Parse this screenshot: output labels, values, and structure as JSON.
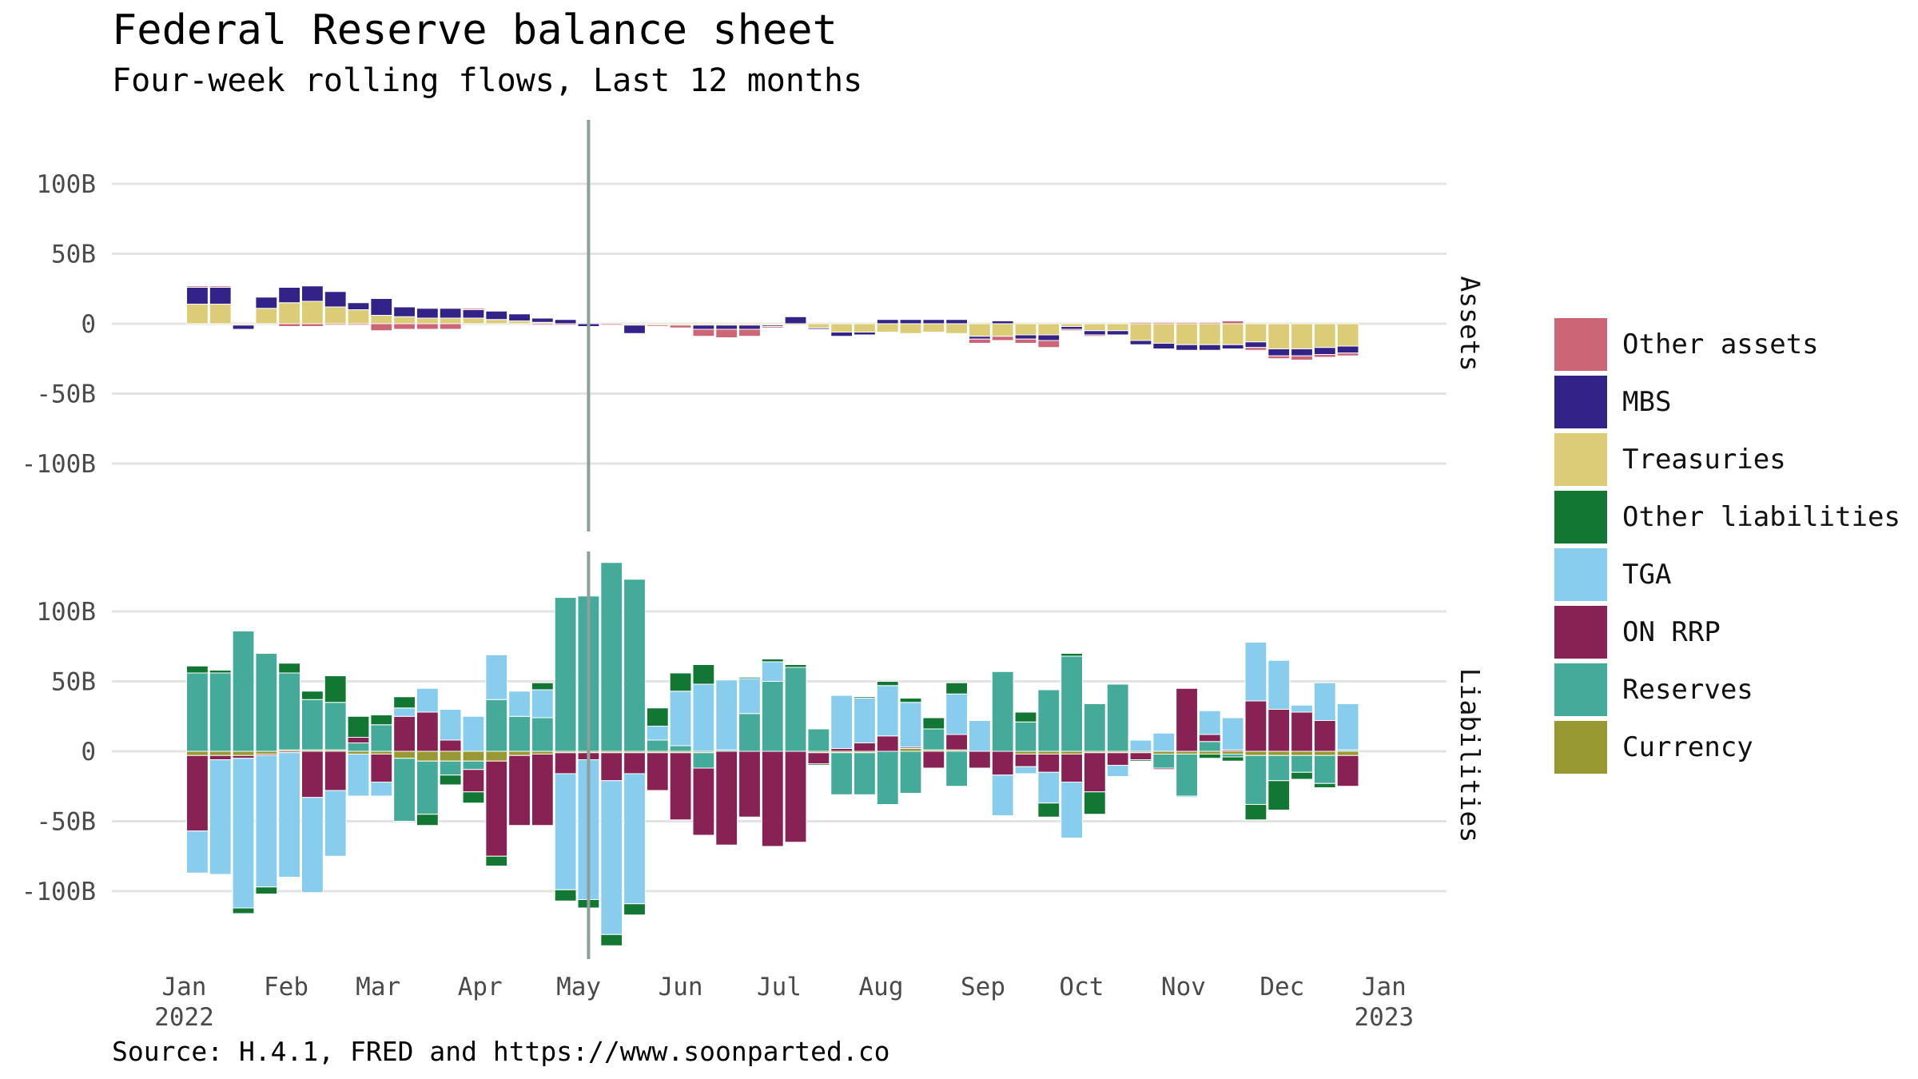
{
  "title": "Federal Reserve balance sheet",
  "subtitle": "Four-week rolling flows, Last 12 months",
  "caption": "Source: H.4.1, FRED and https://www.soonparted.co",
  "chart_data": {
    "type": "bar",
    "stacked": true,
    "facets": [
      "Assets",
      "Liabilities"
    ],
    "x_labels": [
      {
        "date": "2022-01-01",
        "label": "Jan",
        "year": "2022"
      },
      {
        "date": "2022-02-01",
        "label": "Feb"
      },
      {
        "date": "2022-03-01",
        "label": "Mar"
      },
      {
        "date": "2022-04-01",
        "label": "Apr"
      },
      {
        "date": "2022-05-01",
        "label": "May"
      },
      {
        "date": "2022-06-01",
        "label": "Jun"
      },
      {
        "date": "2022-07-01",
        "label": "Jul"
      },
      {
        "date": "2022-08-01",
        "label": "Aug"
      },
      {
        "date": "2022-09-01",
        "label": "Sep"
      },
      {
        "date": "2022-10-01",
        "label": "Oct"
      },
      {
        "date": "2022-11-01",
        "label": "Nov"
      },
      {
        "date": "2022-12-01",
        "label": "Dec"
      },
      {
        "date": "2023-01-01",
        "label": "Jan",
        "year": "2023"
      }
    ],
    "y_ticks": [
      100,
      50,
      0,
      -50,
      -100
    ],
    "y_tick_labels": [
      "100B",
      "50B",
      "0",
      "-50B",
      "-100B"
    ],
    "ylim": [
      -145,
      145
    ],
    "vline_date": "2022-05-04",
    "legend": [
      {
        "name": "Other assets",
        "color": "#cc6677"
      },
      {
        "name": "MBS",
        "color": "#332288"
      },
      {
        "name": "Treasuries",
        "color": "#ddcc77"
      },
      {
        "name": "Other liabilities",
        "color": "#117733"
      },
      {
        "name": "TGA",
        "color": "#88ccee"
      },
      {
        "name": "ON RRP",
        "color": "#882255"
      },
      {
        "name": "Reserves",
        "color": "#44aa99"
      },
      {
        "name": "Currency",
        "color": "#999933"
      }
    ],
    "dates": [
      "2022-01-05",
      "2022-01-12",
      "2022-01-19",
      "2022-01-26",
      "2022-02-02",
      "2022-02-09",
      "2022-02-16",
      "2022-02-23",
      "2022-03-02",
      "2022-03-09",
      "2022-03-16",
      "2022-03-23",
      "2022-03-30",
      "2022-04-06",
      "2022-04-13",
      "2022-04-20",
      "2022-04-27",
      "2022-05-04",
      "2022-05-11",
      "2022-05-18",
      "2022-05-25",
      "2022-06-01",
      "2022-06-08",
      "2022-06-15",
      "2022-06-22",
      "2022-06-29",
      "2022-07-06",
      "2022-07-13",
      "2022-07-20",
      "2022-07-27",
      "2022-08-03",
      "2022-08-10",
      "2022-08-17",
      "2022-08-24",
      "2022-08-31",
      "2022-09-07",
      "2022-09-14",
      "2022-09-21",
      "2022-09-28",
      "2022-10-05",
      "2022-10-12",
      "2022-10-19",
      "2022-10-26",
      "2022-11-02",
      "2022-11-09",
      "2022-11-16",
      "2022-11-23",
      "2022-11-30",
      "2022-12-07",
      "2022-12-14",
      "2022-12-21"
    ],
    "assets": {
      "Treasuries": [
        14,
        14,
        -1,
        11,
        15,
        16,
        12,
        10,
        6,
        5,
        4,
        4,
        4,
        3,
        2,
        1,
        0,
        0,
        0,
        -1,
        -1,
        -1,
        -1,
        -1,
        -1,
        -1,
        -1,
        -3,
        -6,
        -6,
        -6,
        -7,
        -6,
        -7,
        -9,
        -9,
        -8,
        -8,
        -2,
        -5,
        -5,
        -12,
        -14,
        -15,
        -15,
        -15,
        -13,
        -18,
        -18,
        -17,
        -16
      ],
      "MBS": [
        12,
        12,
        -3,
        8,
        11,
        11,
        11,
        5,
        12,
        7,
        7,
        7,
        6,
        6,
        5,
        3,
        3,
        -2,
        0,
        -6,
        0,
        0,
        -3,
        -3,
        -3,
        -1,
        5,
        -1,
        -3,
        -2,
        3,
        3,
        3,
        3,
        -2,
        2,
        -3,
        -4,
        -2,
        -3,
        -3,
        -3,
        -4,
        -4,
        -4,
        -3,
        -4,
        -5,
        -5,
        -5,
        -5
      ],
      "Other assets": [
        1,
        1,
        0,
        0,
        -2,
        -2,
        -1,
        -1,
        -5,
        -4,
        -4,
        -4,
        1,
        0,
        0,
        -1,
        -1,
        0,
        -1,
        0,
        -1,
        -2,
        -5,
        -6,
        -5,
        -1,
        0,
        0,
        0,
        0,
        0,
        0,
        0,
        0,
        -3,
        -3,
        -3,
        -5,
        -1,
        -1,
        0,
        1,
        1,
        1,
        1,
        2,
        -2,
        -2,
        -3,
        -2,
        -2
      ],
      "Treasuries_adj": [
        0,
        0,
        0,
        0,
        0,
        0,
        0,
        0,
        0,
        0,
        0,
        0,
        0,
        0,
        0,
        0,
        0,
        0,
        0,
        0,
        0,
        0,
        0,
        0,
        0,
        0,
        0,
        0,
        0,
        0,
        0,
        0,
        0,
        0,
        0,
        0,
        0,
        0,
        0,
        0,
        0,
        0,
        0,
        0,
        0,
        0,
        0,
        0,
        0,
        0,
        0
      ]
    },
    "liabilities": {
      "Currency": [
        -3,
        -3,
        -3,
        -2,
        1,
        1,
        1,
        -2,
        -2,
        -5,
        -7,
        -7,
        -7,
        -7,
        -3,
        -2,
        -1,
        -1,
        -1,
        -1,
        -1,
        -1,
        -1,
        0,
        0,
        0,
        0,
        -1,
        -1,
        -1,
        0,
        2,
        1,
        1,
        0,
        0,
        -2,
        -2,
        -2,
        -1,
        -1,
        -1,
        -2,
        -2,
        -2,
        -2,
        -3,
        -3,
        -3,
        -3,
        -3
      ],
      "Reserves": [
        56,
        56,
        86,
        70,
        55,
        36,
        34,
        6,
        19,
        -45,
        -38,
        -10,
        -6,
        37,
        25,
        24,
        110,
        111,
        135,
        123,
        8,
        4,
        -11,
        1,
        27,
        50,
        60,
        16,
        -30,
        -30,
        -38,
        -30,
        15,
        -25,
        0,
        57,
        21,
        44,
        68,
        34,
        48,
        0,
        -10,
        -30,
        7,
        -2,
        -35,
        -18,
        -12,
        -20,
        1
      ],
      "ON RRP": [
        -54,
        -3,
        -2,
        -1,
        -1,
        -33,
        -28,
        4,
        -20,
        25,
        28,
        8,
        -16,
        -68,
        -50,
        -51,
        -15,
        -5,
        -20,
        -15,
        -27,
        -48,
        -48,
        -67,
        -47,
        -68,
        -65,
        -8,
        2,
        6,
        11,
        1,
        -12,
        11,
        -12,
        -17,
        -9,
        -13,
        -20,
        -28,
        -9,
        -5,
        -1,
        45,
        5,
        1,
        36,
        30,
        28,
        22,
        -22
      ],
      "TGA": [
        -30,
        -82,
        -107,
        -94,
        -89,
        -68,
        -47,
        -30,
        -10,
        6,
        17,
        22,
        25,
        32,
        18,
        20,
        -83,
        -100,
        -110,
        -93,
        10,
        39,
        48,
        50,
        25,
        14,
        0,
        0,
        38,
        32,
        36,
        32,
        0,
        29,
        22,
        -29,
        -5,
        -22,
        -40,
        0,
        -8,
        8,
        13,
        -1,
        17,
        23,
        42,
        35,
        5,
        27,
        33
      ],
      "Other liabilities": [
        5,
        2,
        -4,
        -5,
        7,
        6,
        19,
        15,
        7,
        8,
        -8,
        -7,
        -8,
        -7,
        0,
        5,
        -8,
        -6,
        -8,
        -8,
        13,
        13,
        14,
        0,
        1,
        2,
        2,
        -1,
        0,
        1,
        3,
        3,
        8,
        8,
        0,
        0,
        7,
        -10,
        2,
        -16,
        0,
        -1,
        0,
        0,
        -3,
        -3,
        -11,
        -21,
        -5,
        -3,
        0
      ]
    }
  }
}
